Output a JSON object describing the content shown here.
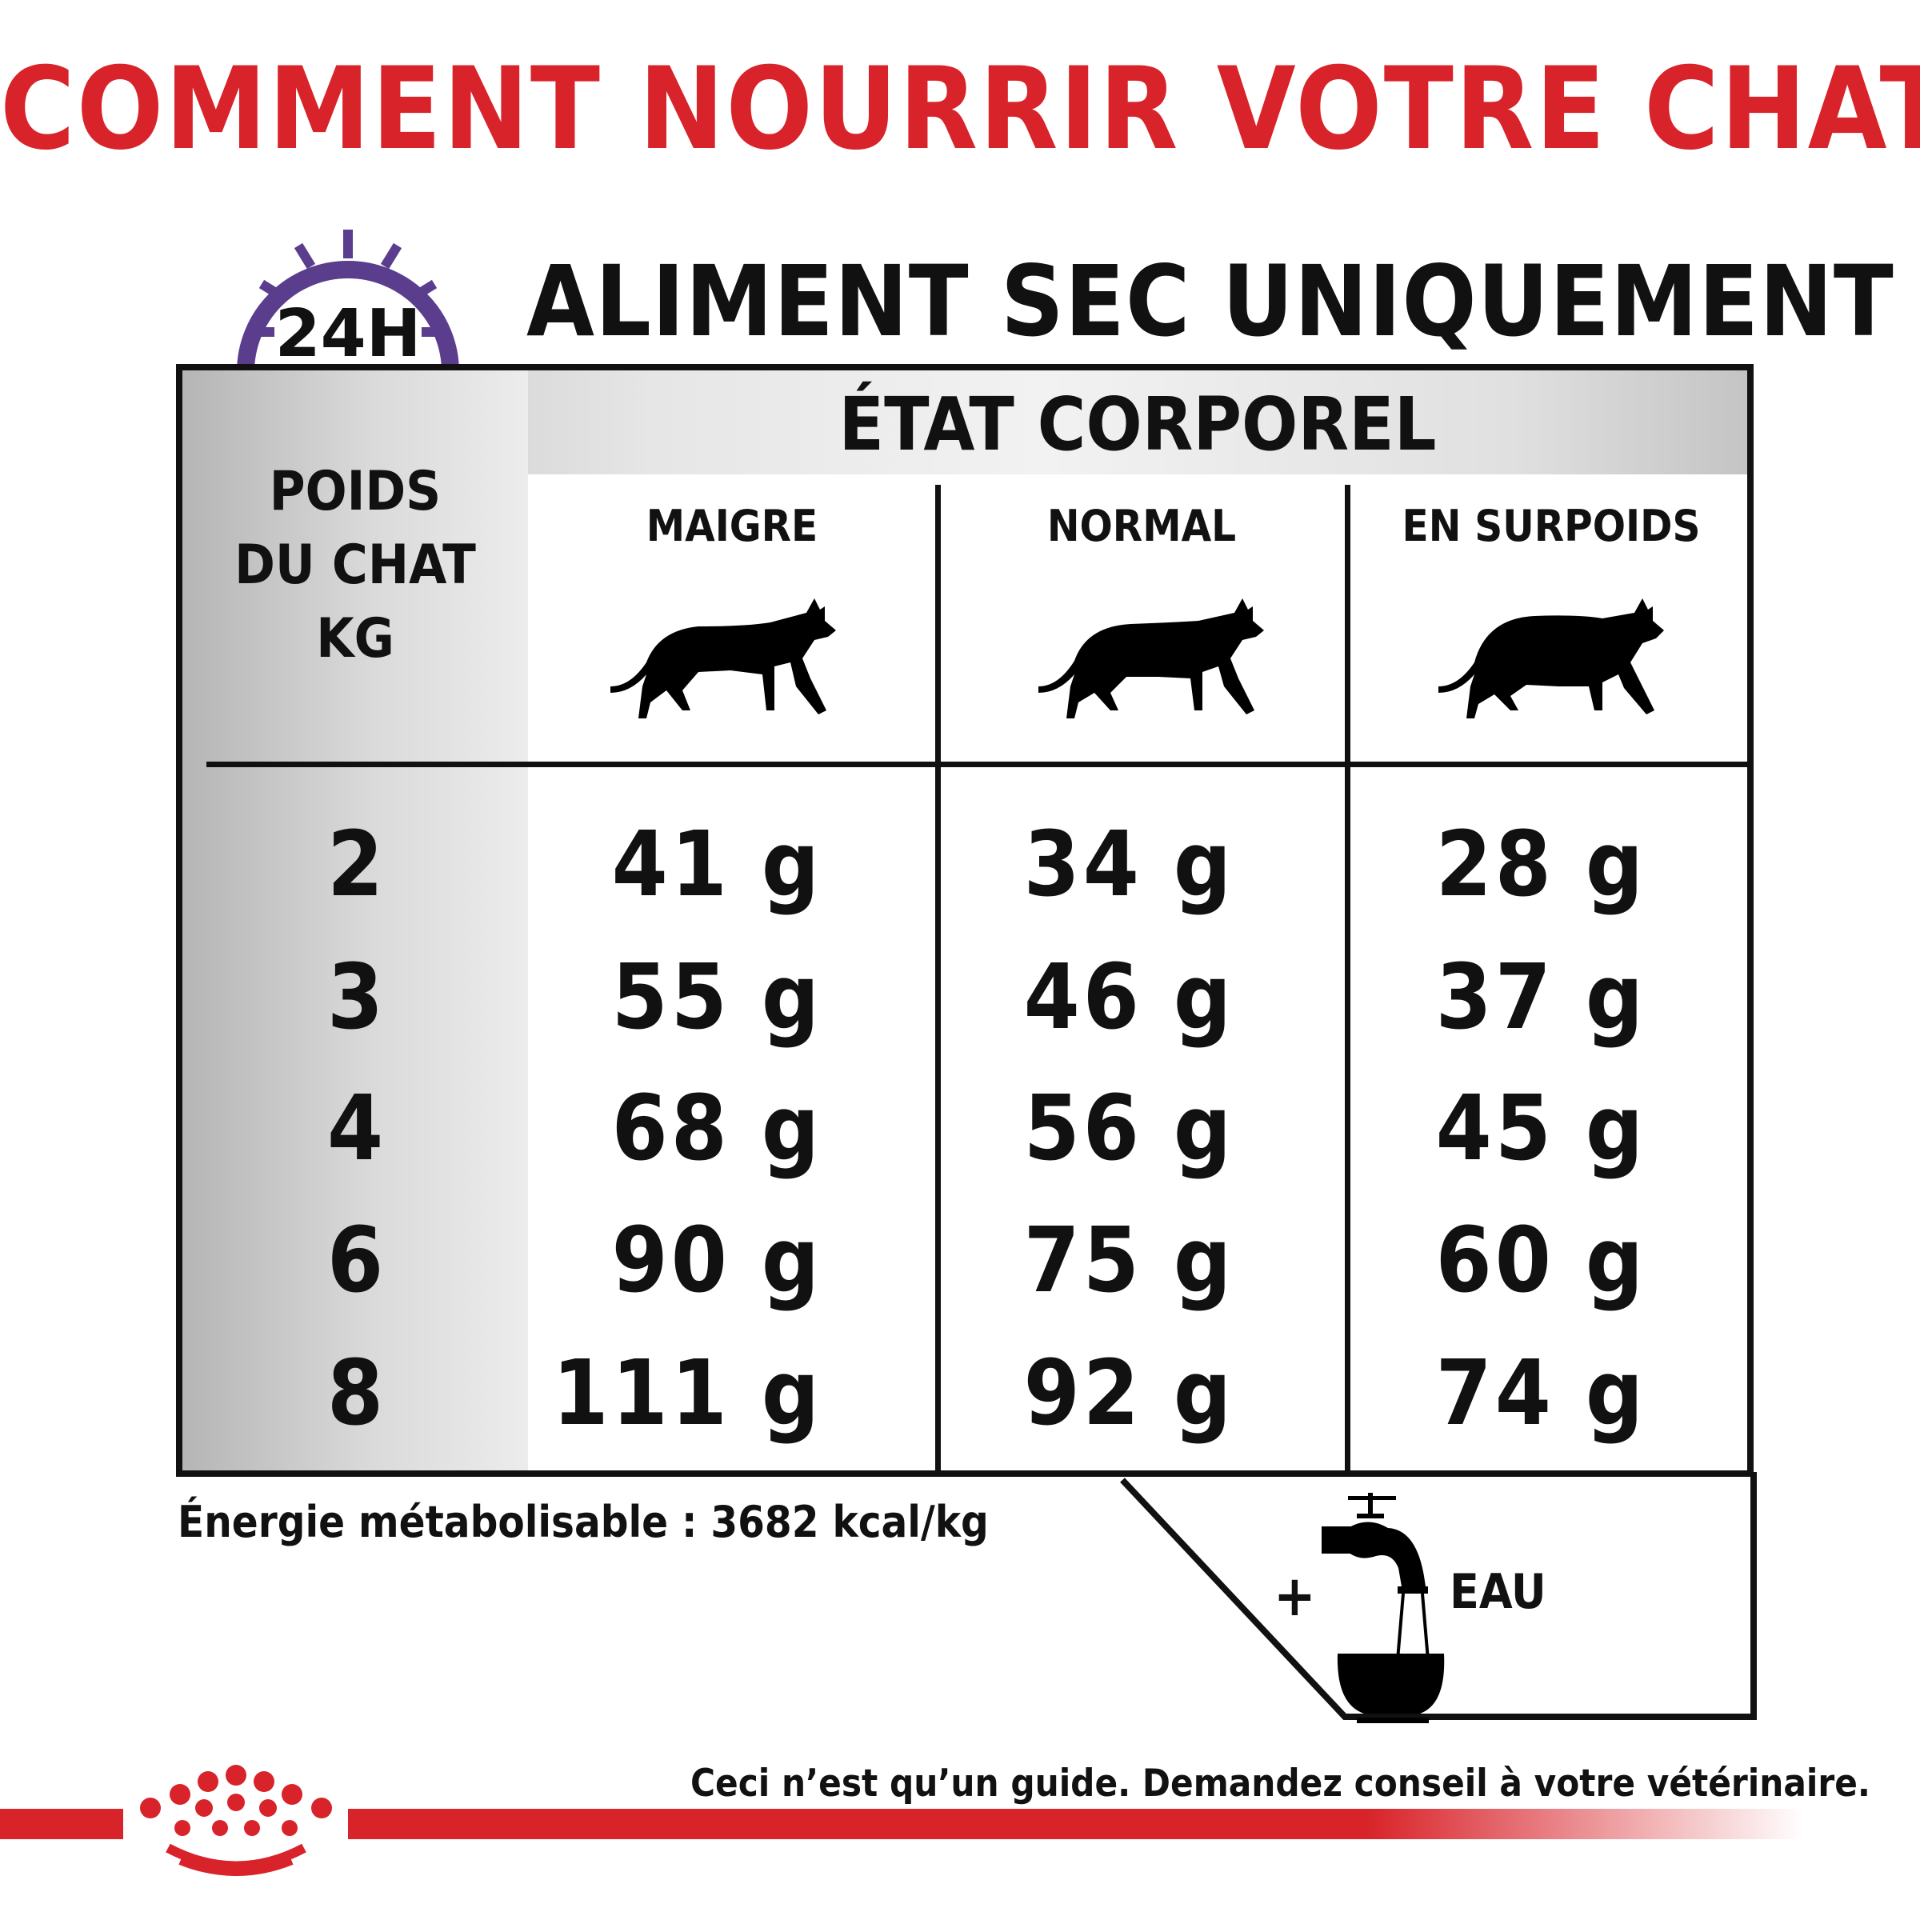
{
  "title": "COMMENT NOURRIR VOTRE CHAT",
  "clock_label": "24H",
  "subtitle": "ALIMENT SEC UNIQUEMENT",
  "table": {
    "group_header": "ÉTAT CORPOREL",
    "weight_header": [
      "POIDS",
      "DU CHAT",
      "KG"
    ],
    "columns": [
      "MAIGRE",
      "NORMAL",
      "EN SURPOIDS"
    ],
    "rows": [
      {
        "weight": "2",
        "values": [
          "41 g",
          "34 g",
          "28 g"
        ]
      },
      {
        "weight": "3",
        "values": [
          "55 g",
          "46 g",
          "37 g"
        ]
      },
      {
        "weight": "4",
        "values": [
          "68 g",
          "56 g",
          "45 g"
        ]
      },
      {
        "weight": "6",
        "values": [
          "90 g",
          "75 g",
          "60 g"
        ]
      },
      {
        "weight": "8",
        "values": [
          "111 g",
          "92 g",
          "74 g"
        ]
      }
    ]
  },
  "energy": "Énergie métabolisable : 3682 kcal/kg",
  "water": {
    "plus": "+",
    "label": "EAU",
    "icon": "tap-bowl-icon"
  },
  "footer": "Ceci n’est qu’un guide. Demandez conseil à votre vétérinaire.",
  "colors": {
    "brand_red": "#d8232a",
    "clock_purple": "#5a3d8c"
  }
}
